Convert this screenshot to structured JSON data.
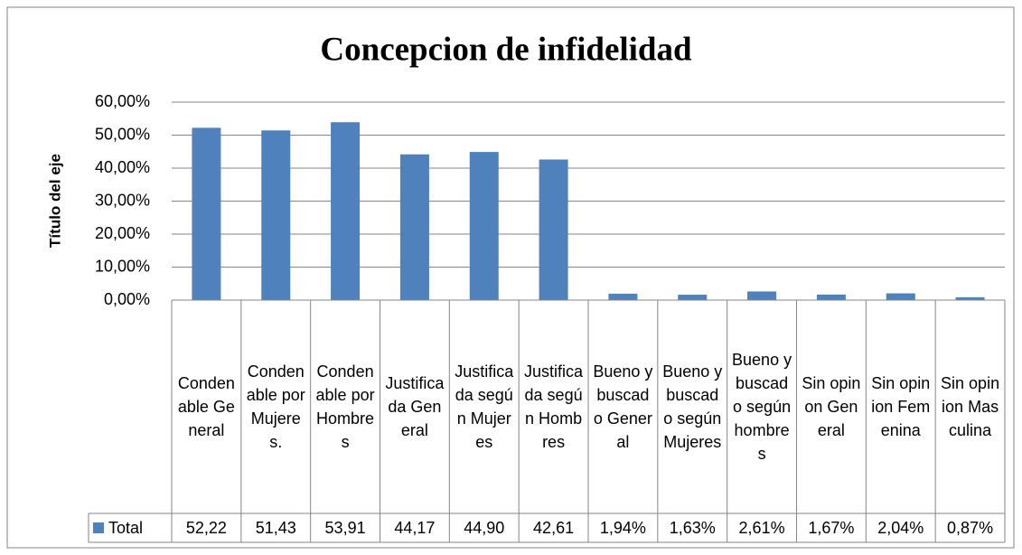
{
  "chart_data": {
    "type": "bar",
    "title": "Concepcion de infidelidad",
    "y_label": "Título del eje",
    "categories": [
      "Condenable General",
      "Condenable por Mujeres.",
      "Condenable por Hombres",
      "Justificada General",
      "Justificada según Mujeres",
      "Justificada según Hombres",
      "Bueno y buscado General",
      "Bueno y buscado según Mujeres",
      "Bueno y buscado según hombres",
      "Sin opinon General",
      "Sin opinion Femenina",
      "Sin opinion Masculina"
    ],
    "series": [
      {
        "name": "Total",
        "color": "#4f81bd",
        "values": [
          52.22,
          51.43,
          53.91,
          44.17,
          44.9,
          42.61,
          1.94,
          1.63,
          2.61,
          1.67,
          2.04,
          0.87
        ],
        "value_labels": [
          "52,22",
          "51,43",
          "53,91",
          "44,17",
          "44,90",
          "42,61",
          "1,94%",
          "1,63%",
          "2,61%",
          "1,67%",
          "2,04%",
          "0,87%"
        ]
      }
    ],
    "ylim": [
      0,
      60
    ],
    "yticks": [
      {
        "value": 0,
        "label": "0,00%"
      },
      {
        "value": 10,
        "label": "10,00%"
      },
      {
        "value": 20,
        "label": "20,00%"
      },
      {
        "value": 30,
        "label": "30,00%"
      },
      {
        "value": 40,
        "label": "40,00%"
      },
      {
        "value": 50,
        "label": "50,00%"
      },
      {
        "value": 60,
        "label": "60,00%"
      }
    ],
    "grid": true
  }
}
